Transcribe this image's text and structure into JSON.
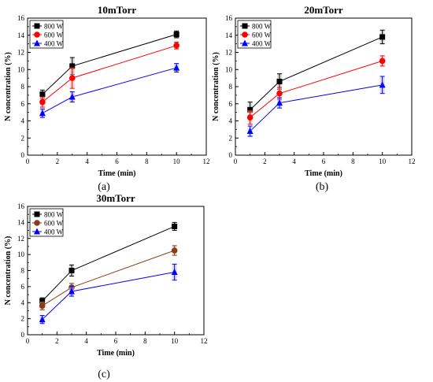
{
  "panels_caption": [
    "(a)",
    "(b)",
    "(c)"
  ],
  "chart_data": [
    {
      "type": "scatter",
      "title": "10mTorr",
      "xlabel": "Time (min)",
      "ylabel": "N concentration (%)",
      "xlim": [
        0,
        12
      ],
      "ylim": [
        0,
        16
      ],
      "xticks": [
        0,
        2,
        4,
        6,
        8,
        10,
        12
      ],
      "yticks": [
        0,
        2,
        4,
        6,
        8,
        10,
        12,
        14,
        16
      ],
      "legend_position": "top-left",
      "series": [
        {
          "name": "800 W",
          "marker": "square",
          "color": "#000000",
          "x": [
            1,
            3,
            10
          ],
          "y": [
            7.1,
            10.4,
            14.1
          ],
          "err": [
            0.5,
            1.0,
            0.4
          ]
        },
        {
          "name": "600 W",
          "marker": "circle",
          "color": "#ff0000",
          "x": [
            1,
            3,
            10
          ],
          "y": [
            6.2,
            9.0,
            12.8
          ],
          "err": [
            0.6,
            1.2,
            0.4
          ]
        },
        {
          "name": "400 W",
          "marker": "triangle",
          "color": "#0000ff",
          "x": [
            1,
            3,
            10
          ],
          "y": [
            4.9,
            6.8,
            10.2
          ],
          "err": [
            0.5,
            0.6,
            0.5
          ]
        }
      ]
    },
    {
      "type": "scatter",
      "title": "20mTorr",
      "xlabel": "Time (min)",
      "ylabel": "N concentration (%)",
      "xlim": [
        0,
        12
      ],
      "ylim": [
        0,
        16
      ],
      "xticks": [
        0,
        2,
        4,
        6,
        8,
        10,
        12
      ],
      "yticks": [
        0,
        2,
        4,
        6,
        8,
        10,
        12,
        14,
        16
      ],
      "legend_position": "top-left",
      "series": [
        {
          "name": "800 W",
          "marker": "square",
          "color": "#000000",
          "x": [
            1,
            3,
            10
          ],
          "y": [
            5.3,
            8.6,
            13.8
          ],
          "err": [
            0.9,
            0.9,
            0.8
          ]
        },
        {
          "name": "600 W",
          "marker": "circle",
          "color": "#ff0000",
          "x": [
            1,
            3,
            10
          ],
          "y": [
            4.4,
            7.2,
            11.0
          ],
          "err": [
            0.8,
            0.7,
            0.6
          ]
        },
        {
          "name": "400 W",
          "marker": "triangle",
          "color": "#0000ff",
          "x": [
            1,
            3,
            10
          ],
          "y": [
            2.8,
            6.1,
            8.2
          ],
          "err": [
            0.6,
            0.6,
            1.0
          ]
        }
      ]
    },
    {
      "type": "scatter",
      "title": "30mTorr",
      "xlabel": "Time (min)",
      "ylabel": "N concentration (%)",
      "xlim": [
        0,
        12
      ],
      "ylim": [
        0,
        16
      ],
      "xticks": [
        0,
        2,
        4,
        6,
        8,
        10,
        12
      ],
      "yticks": [
        0,
        2,
        4,
        6,
        8,
        10,
        12,
        14,
        16
      ],
      "legend_position": "top-left",
      "series": [
        {
          "name": "800 W",
          "marker": "square",
          "color": "#000000",
          "x": [
            1,
            3,
            10
          ],
          "y": [
            4.2,
            8.0,
            13.5
          ],
          "err": [
            0.4,
            0.7,
            0.5
          ]
        },
        {
          "name": "600 W",
          "marker": "circle",
          "color": "#8b3a1a",
          "x": [
            1,
            3,
            10
          ],
          "y": [
            3.6,
            5.9,
            10.5
          ],
          "err": [
            0.5,
            0.5,
            0.6
          ]
        },
        {
          "name": "400 W",
          "marker": "triangle",
          "color": "#0000ff",
          "x": [
            1,
            3,
            10
          ],
          "y": [
            1.9,
            5.4,
            7.8
          ],
          "err": [
            0.5,
            0.6,
            1.0
          ]
        }
      ]
    }
  ]
}
